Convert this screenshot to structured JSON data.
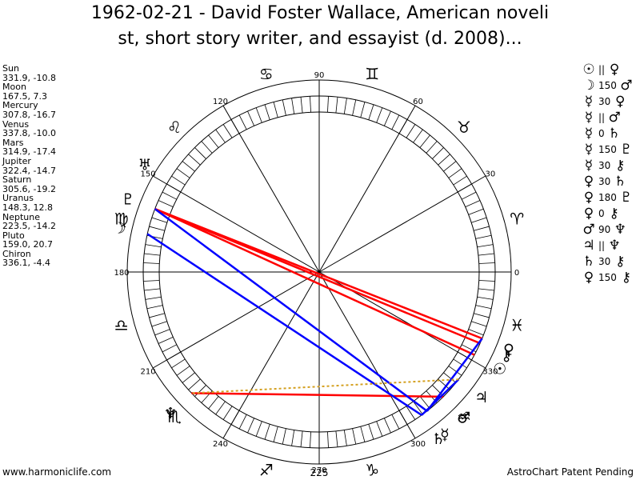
{
  "title": {
    "line1": "1962-02-21 - David Foster Wallace, American noveli",
    "line2": "st, short story writer, and essayist (d. 2008)..."
  },
  "planets": [
    {
      "name": "Sun",
      "value": "331.9, -10.8"
    },
    {
      "name": "Moon",
      "value": "167.5, 7.3"
    },
    {
      "name": "Mercury",
      "value": "307.8, -16.7"
    },
    {
      "name": "Venus",
      "value": "337.8, -10.0"
    },
    {
      "name": "Mars",
      "value": "314.9, -17.4"
    },
    {
      "name": "Jupiter",
      "value": "322.4, -14.7"
    },
    {
      "name": "Saturn",
      "value": "305.6, -19.2"
    },
    {
      "name": "Uranus",
      "value": "148.3, 12.8"
    },
    {
      "name": "Neptune",
      "value": "223.5, -14.2"
    },
    {
      "name": "Pluto",
      "value": "159.0, 20.7"
    },
    {
      "name": "Chiron",
      "value": "336.1, -4.4"
    }
  ],
  "aspects": [
    {
      "p1": "☉",
      "angle": "||",
      "p2": "♀"
    },
    {
      "p1": "☽",
      "angle": "150",
      "p2": "♂"
    },
    {
      "p1": "☿",
      "angle": "30",
      "p2": "♀"
    },
    {
      "p1": "☿",
      "angle": "||",
      "p2": "♂"
    },
    {
      "p1": "☿",
      "angle": "0",
      "p2": "♄"
    },
    {
      "p1": "☿",
      "angle": "150",
      "p2": "♇"
    },
    {
      "p1": "☿",
      "angle": "30",
      "p2": "⚷"
    },
    {
      "p1": "♀",
      "angle": "30",
      "p2": "♄"
    },
    {
      "p1": "♀",
      "angle": "180",
      "p2": "♇"
    },
    {
      "p1": "♀",
      "angle": "0",
      "p2": "⚷"
    },
    {
      "p1": "♂",
      "angle": "90",
      "p2": "♆"
    },
    {
      "p1": "♃",
      "angle": "||",
      "p2": "♆"
    },
    {
      "p1": "♄",
      "angle": "30",
      "p2": "⚷"
    },
    {
      "p1": "♀",
      "angle": "150",
      "p2": "⚷"
    }
  ],
  "wheel": {
    "degree_labels": [
      "0",
      "30",
      "60",
      "90",
      "120",
      "150",
      "180",
      "210",
      "240",
      "270",
      "300",
      "330"
    ],
    "ascendant": "225",
    "zodiac": [
      "♈",
      "♉",
      "♊",
      "♋",
      "♌",
      "♍",
      "♎",
      "♏",
      "♐",
      "♑",
      "♒",
      "♓"
    ],
    "planet_glyphs": [
      {
        "name": "Sun",
        "glyph": "☉",
        "lon": 331.9
      },
      {
        "name": "Moon",
        "glyph": "☽",
        "lon": 167.5
      },
      {
        "name": "Mercury",
        "glyph": "☿",
        "lon": 307.8
      },
      {
        "name": "Venus",
        "glyph": "♀",
        "lon": 337.8
      },
      {
        "name": "Mars",
        "glyph": "♂",
        "lon": 314.9
      },
      {
        "name": "Jupiter",
        "glyph": "♃",
        "lon": 322.4
      },
      {
        "name": "Saturn",
        "glyph": "♄",
        "lon": 305.6
      },
      {
        "name": "Uranus",
        "glyph": "♅",
        "lon": 148.3
      },
      {
        "name": "Neptune",
        "glyph": "♆",
        "lon": 223.5
      },
      {
        "name": "Pluto",
        "glyph": "♇",
        "lon": 159.0
      },
      {
        "name": "Chiron",
        "glyph": "⚷",
        "lon": 336.1
      }
    ],
    "aspect_lines": [
      {
        "from": 331.9,
        "to": 159.0,
        "color": "#ff0000"
      },
      {
        "from": 337.8,
        "to": 159.0,
        "color": "#ff0000"
      },
      {
        "from": 336.1,
        "to": 159.0,
        "color": "#ff0000"
      },
      {
        "from": 314.9,
        "to": 223.5,
        "color": "#ff0000"
      },
      {
        "from": 307.8,
        "to": 159.0,
        "color": "#0000ff"
      },
      {
        "from": 305.6,
        "to": 167.5,
        "color": "#0000ff"
      },
      {
        "from": 322.4,
        "to": 305.6,
        "color": "#0000ff"
      },
      {
        "from": 337.8,
        "to": 307.8,
        "color": "#0000ff"
      },
      {
        "from": 322.4,
        "to": 223.5,
        "color": "#d4a020",
        "dashed": true
      }
    ],
    "colors": {
      "red": "#ff0000",
      "blue": "#0000ff",
      "gold": "#d4a020"
    }
  },
  "footer": {
    "left": "www.harmoniclife.com",
    "right": "AstroChart Patent Pending"
  }
}
